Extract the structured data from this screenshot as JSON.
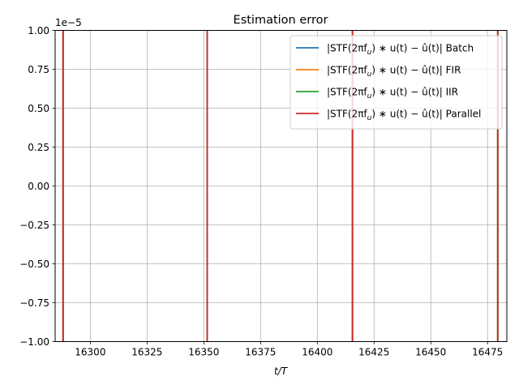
{
  "chart_data": {
    "type": "line",
    "title": "Estimation error",
    "xlabel": "t/T",
    "ylabel": "",
    "y_offset_text": "1e−5",
    "xlim": [
      16284.5,
      16483.5
    ],
    "ylim": [
      -1.0,
      1.0
    ],
    "x_ticks": [
      16300,
      16325,
      16350,
      16375,
      16400,
      16425,
      16450,
      16475
    ],
    "x_tick_labels": [
      "16300",
      "16325",
      "16350",
      "16375",
      "16400",
      "16425",
      "16450",
      "16475"
    ],
    "y_ticks": [
      -1.0,
      -0.75,
      -0.5,
      -0.25,
      0.0,
      0.25,
      0.5,
      0.75,
      1.0
    ],
    "y_tick_labels": [
      "−1.00",
      "−0.75",
      "−0.50",
      "−0.25",
      "0.00",
      "0.25",
      "0.50",
      "0.75",
      "1.00"
    ],
    "grid": true,
    "legend_position": "top-right",
    "series": [
      {
        "name": "|STF(2πf_u) ∗ u(t) − û(t)| Batch",
        "label_main": "|STF(2πf",
        "label_sub": "u",
        "label_rest": ") ∗ u(t) − û(t)| Batch",
        "color": "#1f77b4",
        "spike_x": [
          16288,
          16351.5,
          16415.5,
          16479.5
        ]
      },
      {
        "name": "|STF(2πf_u) ∗ u(t) − û(t)| FIR",
        "label_main": "|STF(2πf",
        "label_sub": "u",
        "label_rest": ") ∗ u(t) − û(t)| FIR",
        "color": "#ff7f0e",
        "spike_x": [
          16288,
          16351.5,
          16415.5,
          16479.5
        ]
      },
      {
        "name": "|STF(2πf_u) ∗ u(t) − û(t)| IIR",
        "label_main": "|STF(2πf",
        "label_sub": "u",
        "label_rest": ") ∗ u(t) − û(t)| IIR",
        "color": "#2ca02c",
        "spike_x": [
          16288,
          16351.5,
          16415.5,
          16479.5
        ]
      },
      {
        "name": "|STF(2πf_u) ∗ u(t) − û(t)| Parallel",
        "label_main": "|STF(2πf",
        "label_sub": "u",
        "label_rest": ") ∗ u(t) − û(t)| Parallel",
        "color": "#d62728",
        "spike_x": [
          16288,
          16351.5,
          16415.5,
          16479.5
        ]
      }
    ]
  }
}
